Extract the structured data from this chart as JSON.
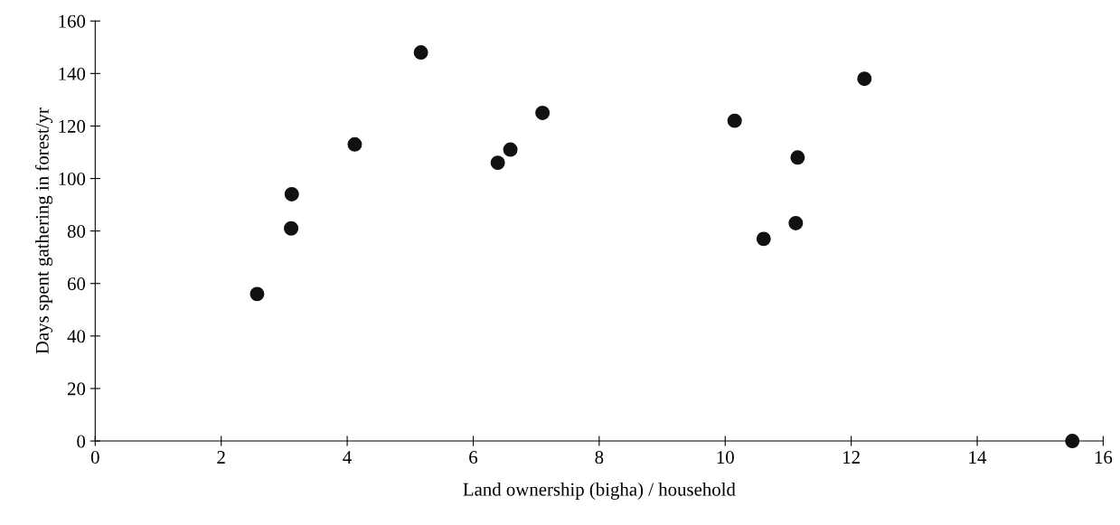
{
  "chart_data": {
    "type": "scatter",
    "xlabel": "Land ownership (bigha) / household",
    "ylabel": "Days spent gathering in forest/yr",
    "x": [
      2.57,
      3.11,
      3.12,
      4.12,
      5.17,
      6.39,
      6.59,
      7.1,
      10.15,
      10.61,
      11.12,
      11.15,
      12.21,
      15.51
    ],
    "values": [
      56,
      81,
      94,
      113,
      148,
      106,
      111,
      125,
      122,
      77,
      83,
      108,
      138,
      0
    ],
    "color": "#111111",
    "marker": "circle",
    "xlim": [
      0,
      16
    ],
    "xticks": [
      0,
      2,
      4,
      6,
      8,
      10,
      12,
      14,
      16
    ],
    "ylim": [
      0,
      160
    ],
    "yticks": [
      0,
      20,
      40,
      60,
      80,
      100,
      120,
      140,
      160
    ],
    "grid": false
  }
}
